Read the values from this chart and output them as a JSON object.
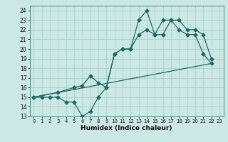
{
  "xlabel": "Humidex (Indice chaleur)",
  "bg_color": "#cce8e4",
  "grid_color": "#aacfca",
  "line_color": "#1a6b60",
  "xlim": [
    -0.5,
    23.5
  ],
  "ylim": [
    13,
    24.5
  ],
  "yticks": [
    13,
    14,
    15,
    16,
    17,
    18,
    19,
    20,
    21,
    22,
    23,
    24
  ],
  "xticks": [
    0,
    1,
    2,
    3,
    4,
    5,
    6,
    7,
    8,
    9,
    10,
    11,
    12,
    13,
    14,
    15,
    16,
    17,
    18,
    19,
    20,
    21,
    22,
    23
  ],
  "line1_x": [
    0,
    1,
    2,
    3,
    4,
    5,
    6,
    7,
    8,
    9,
    10,
    11,
    12,
    13,
    14,
    15,
    16,
    17,
    18,
    19,
    20,
    21,
    22
  ],
  "line1_y": [
    15,
    15,
    15,
    15,
    14.5,
    14.5,
    13,
    13.5,
    15,
    16.0,
    19.5,
    20,
    20,
    23,
    24,
    21.5,
    23,
    23,
    22,
    21.5,
    21.5,
    19.5,
    18.5
  ],
  "line2_x": [
    0,
    3,
    5,
    6,
    7,
    8,
    9,
    10,
    11,
    12,
    13,
    14,
    15,
    16,
    17,
    18,
    19,
    20,
    21,
    22
  ],
  "line2_y": [
    15,
    15.5,
    16.0,
    16.2,
    17.2,
    16.5,
    16.0,
    19.5,
    20,
    20,
    21.5,
    22,
    21.5,
    21.5,
    23,
    23,
    22,
    22,
    21.5,
    19.0
  ],
  "line3_x": [
    0,
    22
  ],
  "line3_y": [
    15,
    18.5
  ],
  "marker": "D",
  "markersize": 2.5,
  "linewidth": 0.9
}
